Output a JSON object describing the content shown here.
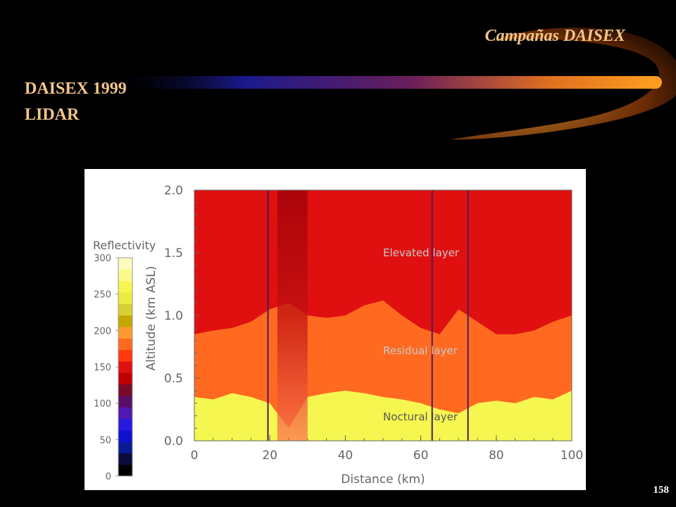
{
  "header": {
    "slide_title": "Campañas DAISEX",
    "heading_1": "DAISEX 1999",
    "heading_2": "LIDAR"
  },
  "footer": {
    "page_number": "158"
  },
  "colors": {
    "title_text": "#f2c58a",
    "swoosh_start": "#1a1a8c",
    "swoosh_end": "#ffa020"
  },
  "chart_data": {
    "type": "heatmap",
    "xlabel": "Distance (km)",
    "ylabel": "Altitude (km ASL)",
    "xlim": [
      0,
      100
    ],
    "ylim": [
      0,
      2
    ],
    "x_ticks": [
      "0",
      "20",
      "40",
      "60",
      "80",
      "100"
    ],
    "y_ticks": [
      "0.0",
      "0.5",
      "1.0",
      "1.5",
      "2.0"
    ],
    "grid": false,
    "colorbar": {
      "title": "Reflectivity",
      "range": [
        0,
        300
      ],
      "ticks": [
        "0",
        "50",
        "100",
        "150",
        "200",
        "250",
        "300"
      ],
      "colors": [
        "#000000",
        "#0c0c3c",
        "#0a1a96",
        "#1010d0",
        "#2a18e0",
        "#5018b0",
        "#5a0e6a",
        "#7a0a2a",
        "#c00000",
        "#e01010",
        "#ff3a10",
        "#ff6a20",
        "#ff9a30",
        "#c4a800",
        "#d8d030",
        "#ecec40",
        "#f6f650",
        "#fafa8c",
        "#fcfcc0"
      ]
    },
    "layers": [
      {
        "name": "Elevated layer",
        "label_position": [
          50,
          1.5
        ],
        "altitude_range": [
          1.0,
          2.0
        ],
        "reflectivity": 150
      },
      {
        "name": "Residual layer",
        "label_position": [
          50,
          0.72
        ],
        "altitude_range": [
          0.4,
          1.0
        ],
        "reflectivity": 185
      },
      {
        "name": "Noctural layer",
        "label_position": [
          50,
          0.19
        ],
        "altitude_range": [
          0.0,
          0.4
        ],
        "reflectivity": 270
      }
    ],
    "vertical_markers_km": [
      19.5,
      63,
      72.5
    ],
    "residual_top_profile": {
      "x": [
        0,
        5,
        10,
        15,
        20,
        25,
        30,
        35,
        40,
        45,
        50,
        55,
        60,
        65,
        70,
        75,
        80,
        85,
        90,
        95,
        100
      ],
      "y": [
        0.85,
        0.88,
        0.9,
        0.95,
        1.05,
        1.1,
        1.0,
        0.98,
        1.0,
        1.08,
        1.12,
        1.0,
        0.9,
        0.85,
        1.05,
        0.95,
        0.85,
        0.85,
        0.88,
        0.95,
        1.0
      ]
    },
    "noctural_top_profile": {
      "x": [
        0,
        5,
        10,
        15,
        20,
        25,
        30,
        35,
        40,
        45,
        50,
        55,
        60,
        65,
        70,
        75,
        80,
        85,
        90,
        95,
        100
      ],
      "y": [
        0.35,
        0.33,
        0.38,
        0.35,
        0.3,
        0.1,
        0.35,
        0.38,
        0.4,
        0.38,
        0.35,
        0.33,
        0.3,
        0.25,
        0.22,
        0.3,
        0.32,
        0.3,
        0.35,
        0.33,
        0.4
      ]
    },
    "plume": {
      "x_range": [
        22,
        30
      ],
      "reflectivity": 120
    }
  }
}
